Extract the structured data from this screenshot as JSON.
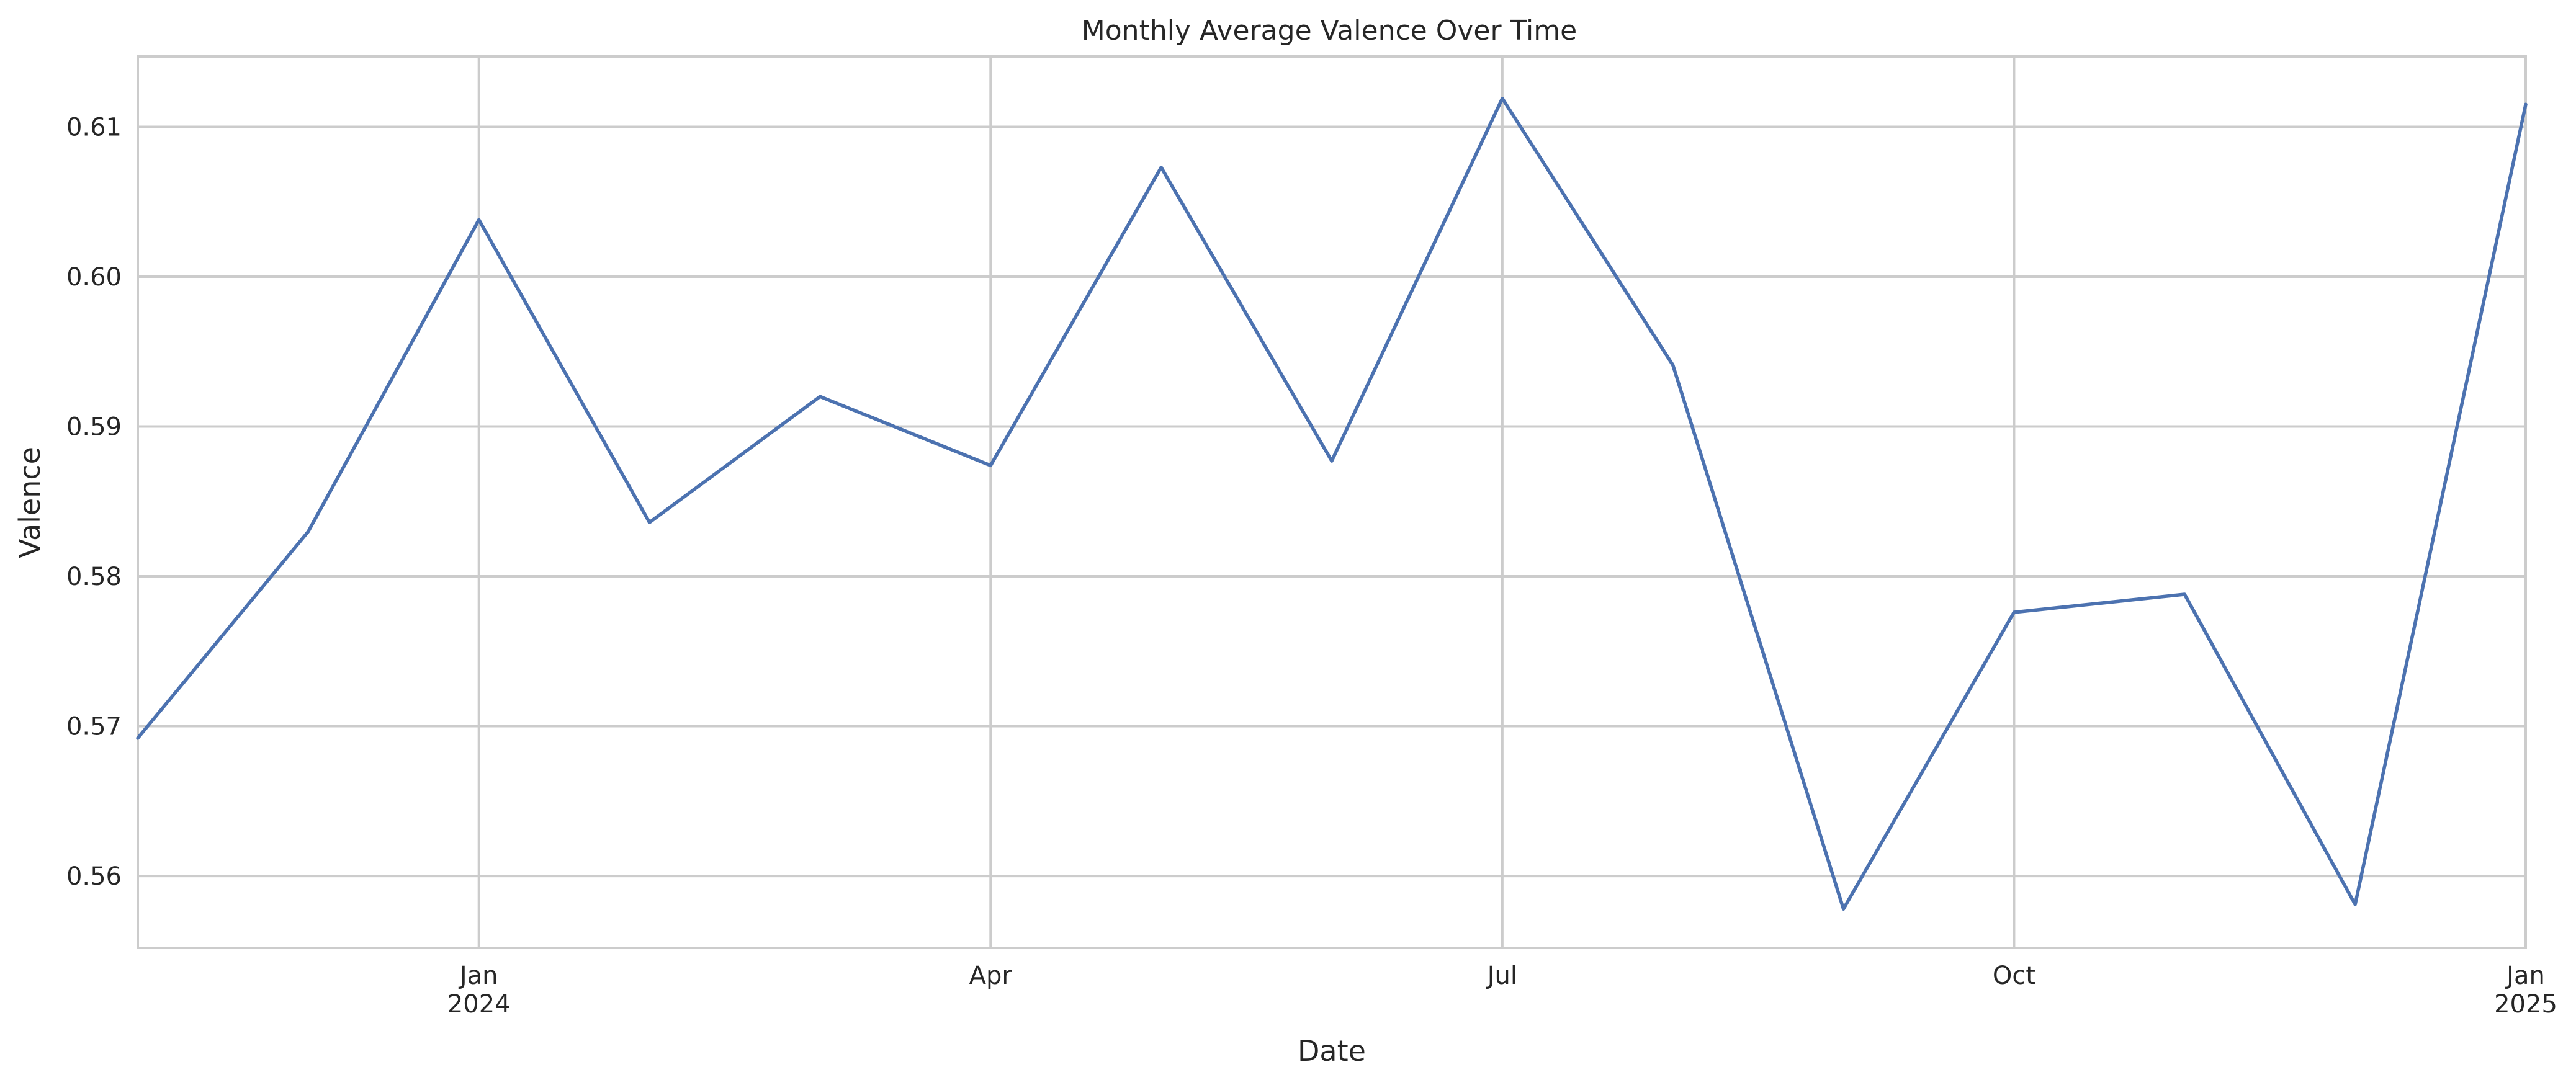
{
  "chart_data": {
    "type": "line",
    "title": "Monthly Average Valence Over Time",
    "xlabel": "Date",
    "ylabel": "Valence",
    "x": [
      "2023-11",
      "2023-12",
      "2024-01",
      "2024-02",
      "2024-03",
      "2024-04",
      "2024-05",
      "2024-06",
      "2024-07",
      "2024-08",
      "2024-09",
      "2024-10",
      "2024-11",
      "2024-12",
      "2025-01"
    ],
    "series": [
      {
        "values": [
          0.5692,
          0.583,
          0.6038,
          0.5836,
          0.592,
          0.5874,
          0.6073,
          0.5877,
          0.6119,
          0.5941,
          0.5578,
          0.5776,
          0.5788,
          0.5581,
          0.6115
        ],
        "color": "#4c72b0"
      }
    ],
    "xlim": [
      "2023-11",
      "2025-01"
    ],
    "ylim": [
      0.5552,
      0.6147
    ],
    "y_ticks": [
      {
        "value": 0.56,
        "label": "0.56"
      },
      {
        "value": 0.57,
        "label": "0.57"
      },
      {
        "value": 0.58,
        "label": "0.58"
      },
      {
        "value": 0.59,
        "label": "0.59"
      },
      {
        "value": 0.6,
        "label": "0.60"
      },
      {
        "value": 0.61,
        "label": "0.61"
      }
    ],
    "x_ticks": [
      {
        "value": "2024-01",
        "label": "Jan",
        "sublabel": "2024"
      },
      {
        "value": "2024-04",
        "label": "Apr",
        "sublabel": ""
      },
      {
        "value": "2024-07",
        "label": "Jul",
        "sublabel": ""
      },
      {
        "value": "2024-10",
        "label": "Oct",
        "sublabel": ""
      },
      {
        "value": "2025-01",
        "label": "Jan",
        "sublabel": "2025"
      }
    ],
    "grid": true,
    "legend": "none"
  }
}
